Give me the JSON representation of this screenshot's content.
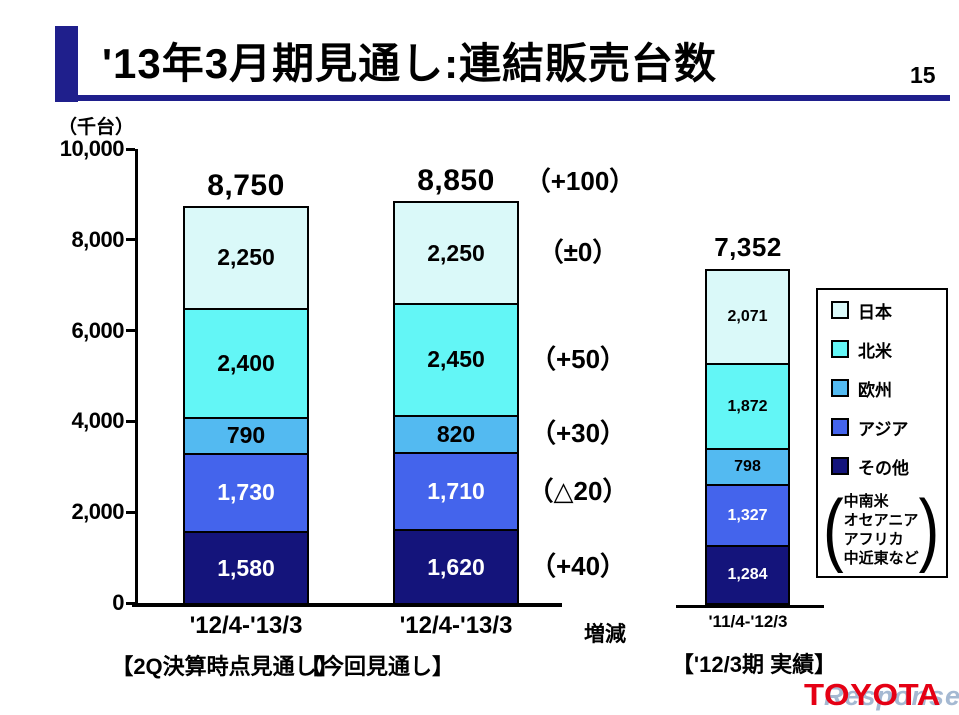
{
  "header": {
    "title": "'13年3月期見通し:連結販売台数",
    "page_number": "15"
  },
  "chart_data": {
    "type": "bar",
    "stacked": true,
    "title": "'13年3月期見通し:連結販売台数",
    "unit_label": "（千台）",
    "ylim": [
      0,
      10000
    ],
    "yticks": [
      {
        "value": 10000,
        "label": "10,000"
      },
      {
        "value": 8000,
        "label": "8,000"
      },
      {
        "value": 6000,
        "label": "6,000"
      },
      {
        "value": 4000,
        "label": "4,000"
      },
      {
        "value": 2000,
        "label": "2,000"
      },
      {
        "value": 0,
        "label": "0"
      }
    ],
    "legend_position": "right",
    "legend": [
      {
        "name": "日本",
        "color": "#DAF9F9",
        "label_color": "#000000"
      },
      {
        "name": "北米",
        "color": "#63F6F6",
        "label_color": "#000000"
      },
      {
        "name": "欧州",
        "color": "#53BAF1",
        "label_color": "#000000"
      },
      {
        "name": "アジア",
        "color": "#4464EC",
        "label_color": "#FFFFFF"
      },
      {
        "name": "その他",
        "color": "#14147B",
        "label_color": "#FFFFFF"
      }
    ],
    "legend_note_lines": [
      "中南米",
      "オセアニア",
      "アフリカ",
      "中近東など"
    ],
    "change_axis_label": "増減",
    "bars": [
      {
        "x_label": "'12/4-'13/3",
        "caption": "【2Q決算時点見通し】",
        "total": 8750,
        "total_label": "8,750",
        "segments": [
          {
            "region": "日本",
            "value": 2250,
            "label": "2,250"
          },
          {
            "region": "北米",
            "value": 2400,
            "label": "2,400"
          },
          {
            "region": "欧州",
            "value": 790,
            "label": "790"
          },
          {
            "region": "アジア",
            "value": 1730,
            "label": "1,730"
          },
          {
            "region": "その他",
            "value": 1580,
            "label": "1,580"
          }
        ]
      },
      {
        "x_label": "'12/4-'13/3",
        "caption": "【今回見通し】",
        "total": 8850,
        "total_label": "8,850",
        "total_change": "（+100）",
        "segments": [
          {
            "region": "日本",
            "value": 2250,
            "label": "2,250",
            "change": "（±0）"
          },
          {
            "region": "北米",
            "value": 2450,
            "label": "2,450",
            "change": "（+50）"
          },
          {
            "region": "欧州",
            "value": 820,
            "label": "820",
            "change": "（+30）"
          },
          {
            "region": "アジア",
            "value": 1710,
            "label": "1,710",
            "change": "（△20）"
          },
          {
            "region": "その他",
            "value": 1620,
            "label": "1,620",
            "change": "（+40）"
          }
        ]
      },
      {
        "x_label": "'11/4-'12/3",
        "caption": "【'12/3期 実績】",
        "total": 7352,
        "total_label": "7,352",
        "segments": [
          {
            "region": "日本",
            "value": 2071,
            "label": "2,071"
          },
          {
            "region": "北米",
            "value": 1872,
            "label": "1,872"
          },
          {
            "region": "欧州",
            "value": 798,
            "label": "798"
          },
          {
            "region": "アジア",
            "value": 1327,
            "label": "1,327"
          },
          {
            "region": "その他",
            "value": 1284,
            "label": "1,284"
          }
        ]
      }
    ]
  },
  "footer": {
    "logo": "TOYOTA",
    "watermark": "Response."
  },
  "colors": {
    "accent_navy": "#1F1F8C",
    "toyota_red": "#E50014"
  }
}
